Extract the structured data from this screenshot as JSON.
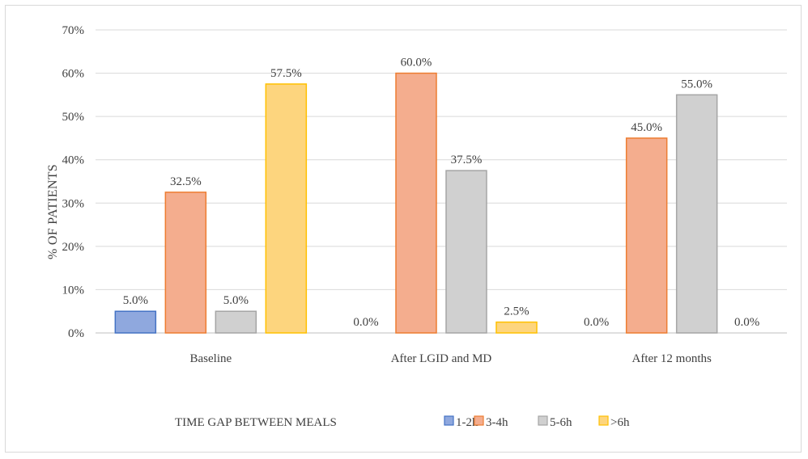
{
  "chart_data": {
    "type": "bar",
    "title": "",
    "ylabel": "% OF PATIENTS",
    "legend_title": "TIME GAP BETWEEN MEALS",
    "categories": [
      "Baseline",
      "After LGID and MD",
      "After 12 months"
    ],
    "ylim": [
      0,
      70
    ],
    "yticks": [
      0,
      10,
      20,
      30,
      40,
      50,
      60,
      70
    ],
    "ytick_labels": [
      "0%",
      "10%",
      "20%",
      "30%",
      "40%",
      "50%",
      "60%",
      "70%"
    ],
    "grid": true,
    "legend_position": "bottom",
    "series": [
      {
        "name": "1-2h",
        "values": [
          5.0,
          0.0,
          0.0
        ],
        "labels": [
          "5.0%",
          "0.0%",
          "0.0%"
        ],
        "color": "#8fa8de",
        "border": "#4472c4"
      },
      {
        "name": "3-4h",
        "values": [
          32.5,
          60.0,
          45.0
        ],
        "labels": [
          "32.5%",
          "60.0%",
          "45.0%"
        ],
        "color": "#f4ad8e",
        "border": "#ed7d31"
      },
      {
        "name": "5-6h",
        "values": [
          5.0,
          37.5,
          55.0
        ],
        "labels": [
          "5.0%",
          "37.5%",
          "55.0%"
        ],
        "color": "#d0d0d0",
        "border": "#a5a5a5"
      },
      {
        "name": ">6h",
        "values": [
          57.5,
          2.5,
          0.0
        ],
        "labels": [
          "57.5%",
          "2.5%",
          "0.0%"
        ],
        "color": "#fdd57e",
        "border": "#ffc000"
      }
    ]
  }
}
